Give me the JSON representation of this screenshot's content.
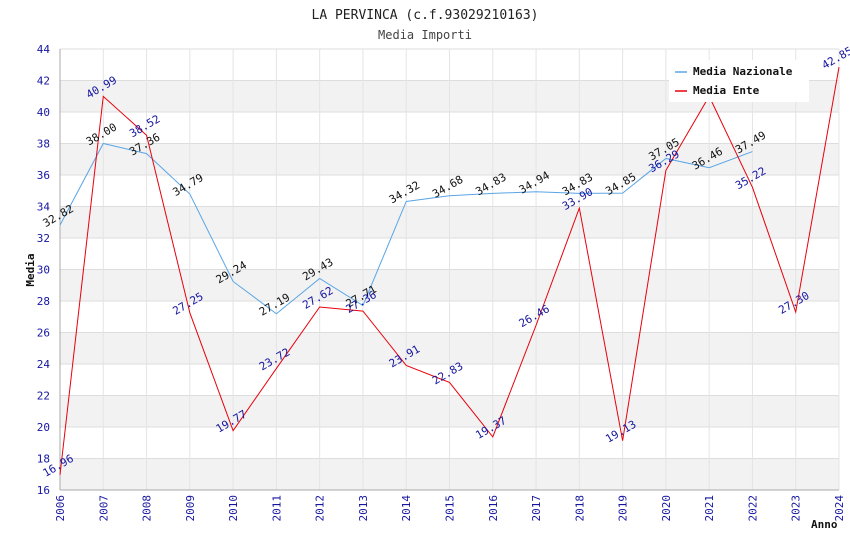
{
  "chart_data": {
    "type": "line",
    "title": "LA PERVINCA (c.f.93029210163)",
    "subtitle": "Media Importi",
    "ylabel": "Media",
    "xlabel": "Anno",
    "ylim": [
      16,
      44
    ],
    "yticks": [
      16,
      18,
      20,
      22,
      24,
      26,
      28,
      30,
      32,
      34,
      36,
      38,
      40,
      42,
      44
    ],
    "categories": [
      "2006",
      "2007",
      "2008",
      "2009",
      "2010",
      "2011",
      "2012",
      "2013",
      "2014",
      "2015",
      "2016",
      "2017",
      "2018",
      "2019",
      "2020",
      "2021",
      "2022",
      "2023",
      "2024"
    ],
    "legend_position": "top-right",
    "series": [
      {
        "name": "Media Nazionale",
        "color": "#5aa5e6",
        "label_color": "#111111",
        "values": [
          32.82,
          38.0,
          37.36,
          34.79,
          29.24,
          27.19,
          29.43,
          27.71,
          34.32,
          34.68,
          34.83,
          34.94,
          34.83,
          34.85,
          37.05,
          36.46,
          37.49,
          null,
          null
        ],
        "labels": [
          "32.82",
          "38.00",
          "37.36",
          "34.79",
          "29.24",
          "27.19",
          "29.43",
          "27.71",
          "34.32",
          "34.68",
          "34.83",
          "34.94",
          "34.83",
          "34.85",
          "37.05",
          "36.46",
          "37.49",
          "",
          ""
        ]
      },
      {
        "name": "Media Ente",
        "color": "#e8000b",
        "label_color": "#1515a0",
        "values": [
          16.96,
          40.99,
          38.52,
          27.25,
          19.77,
          23.72,
          27.62,
          27.36,
          23.91,
          22.83,
          19.37,
          26.46,
          33.9,
          19.13,
          36.29,
          41.0,
          35.22,
          27.3,
          42.85
        ],
        "labels": [
          "16.96",
          "40.99",
          "38.52",
          "27.25",
          "19.77",
          "23.72",
          "27.62",
          "27.36",
          "23.91",
          "22.83",
          "19.37",
          "26.46",
          "33.90",
          "19.13",
          "36.29",
          "",
          "35.22",
          "27.30",
          "42.85"
        ]
      }
    ]
  }
}
